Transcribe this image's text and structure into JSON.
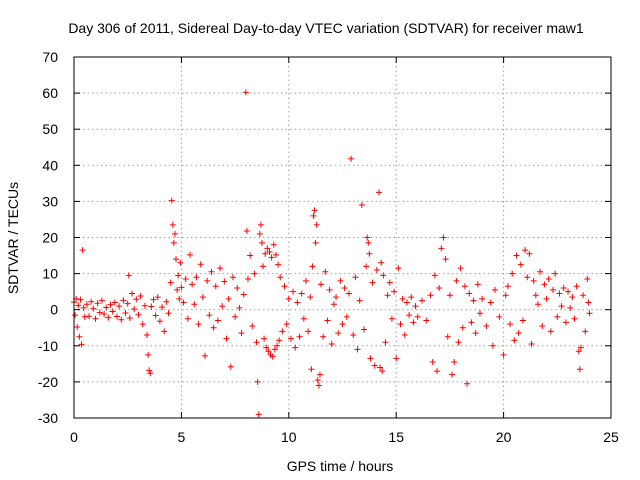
{
  "chart_data": {
    "type": "scatter",
    "title": "Day 306 of 2011, Sidereal Day-to-day VTEC variation (SDTVAR) for receiver maw1",
    "xlabel": "GPS time / hours",
    "ylabel": "SDTVAR / TECUs",
    "xlim": [
      0,
      25
    ],
    "ylim": [
      -30,
      70
    ],
    "xticks": [
      0,
      5,
      10,
      15,
      20,
      25
    ],
    "yticks": [
      -30,
      -20,
      -10,
      0,
      10,
      20,
      30,
      40,
      50,
      60,
      70
    ],
    "grid": true,
    "marker": "+",
    "series": [
      {
        "name": "SDTVAR",
        "color": "#ff0000",
        "points": [
          [
            0.0,
            2.1
          ],
          [
            0.05,
            -1.5
          ],
          [
            0.1,
            3.0
          ],
          [
            0.15,
            -4.8
          ],
          [
            0.2,
            1.2
          ],
          [
            0.25,
            -7.5
          ],
          [
            0.3,
            2.8
          ],
          [
            0.35,
            -9.6
          ],
          [
            0.4,
            16.5
          ],
          [
            0.45,
            0.5
          ],
          [
            0.5,
            -2.0
          ],
          [
            0.6,
            1.5
          ],
          [
            0.7,
            -1.8
          ],
          [
            0.8,
            2.2
          ],
          [
            0.9,
            0.3
          ],
          [
            1.0,
            -2.5
          ],
          [
            1.1,
            1.8
          ],
          [
            1.2,
            -0.8
          ],
          [
            1.3,
            2.5
          ],
          [
            1.4,
            -1.2
          ],
          [
            1.5,
            0.6
          ],
          [
            1.6,
            -2.2
          ],
          [
            1.7,
            1.4
          ],
          [
            1.8,
            -0.5
          ],
          [
            1.9,
            2.0
          ],
          [
            2.0,
            -1.9
          ],
          [
            2.1,
            1.0
          ],
          [
            2.2,
            -2.8
          ],
          [
            2.3,
            2.6
          ],
          [
            2.4,
            -0.9
          ],
          [
            2.5,
            1.7
          ],
          [
            2.55,
            9.5
          ],
          [
            2.6,
            -2.3
          ],
          [
            2.7,
            4.5
          ],
          [
            2.8,
            0.2
          ],
          [
            2.9,
            2.9
          ],
          [
            3.0,
            -1.4
          ],
          [
            3.1,
            3.8
          ],
          [
            3.2,
            -4.0
          ],
          [
            3.3,
            1.1
          ],
          [
            3.4,
            -7.0
          ],
          [
            3.45,
            -12.5
          ],
          [
            3.5,
            -16.8
          ],
          [
            3.55,
            -17.6
          ],
          [
            3.6,
            0.9
          ],
          [
            3.7,
            2.8
          ],
          [
            3.8,
            -1.6
          ],
          [
            3.9,
            3.5
          ],
          [
            4.0,
            -3.2
          ],
          [
            4.1,
            0.7
          ],
          [
            4.2,
            -6.0
          ],
          [
            4.3,
            2.2
          ],
          [
            4.4,
            -1.0
          ],
          [
            4.5,
            7.5
          ],
          [
            4.55,
            30.2
          ],
          [
            4.6,
            23.5
          ],
          [
            4.65,
            18.5
          ],
          [
            4.7,
            21.0
          ],
          [
            4.75,
            14.0
          ],
          [
            4.8,
            5.5
          ],
          [
            4.85,
            9.5
          ],
          [
            4.9,
            3.0
          ],
          [
            4.95,
            13.0
          ],
          [
            5.0,
            6.2
          ],
          [
            5.1,
            2.0
          ],
          [
            5.2,
            8.5
          ],
          [
            5.3,
            -2.5
          ],
          [
            5.4,
            15.2
          ],
          [
            5.5,
            7.0
          ],
          [
            5.6,
            1.5
          ],
          [
            5.7,
            9.0
          ],
          [
            5.8,
            -4.0
          ],
          [
            5.9,
            12.6
          ],
          [
            6.0,
            3.5
          ],
          [
            6.1,
            -12.8
          ],
          [
            6.2,
            8.0
          ],
          [
            6.3,
            -1.5
          ],
          [
            6.4,
            10.5
          ],
          [
            6.5,
            -5.0
          ],
          [
            6.6,
            6.5
          ],
          [
            6.7,
            -3.0
          ],
          [
            6.8,
            11.5
          ],
          [
            6.9,
            1.0
          ],
          [
            7.0,
            7.8
          ],
          [
            7.1,
            -8.0
          ],
          [
            7.2,
            3.0
          ],
          [
            7.3,
            -15.8
          ],
          [
            7.4,
            9.0
          ],
          [
            7.5,
            -2.0
          ],
          [
            7.6,
            6.0
          ],
          [
            7.7,
            0.5
          ],
          [
            7.8,
            -6.5
          ],
          [
            7.9,
            4.2
          ],
          [
            8.0,
            60.2
          ],
          [
            8.05,
            21.8
          ],
          [
            8.1,
            8.5
          ],
          [
            8.2,
            15.0
          ],
          [
            8.3,
            -4.5
          ],
          [
            8.4,
            10.0
          ],
          [
            8.5,
            -9.0
          ],
          [
            8.55,
            -20.0
          ],
          [
            8.6,
            -29.0
          ],
          [
            8.65,
            21.0
          ],
          [
            8.7,
            23.5
          ],
          [
            8.75,
            18.5
          ],
          [
            8.8,
            12.0
          ],
          [
            8.85,
            -8.0
          ],
          [
            8.9,
            15.5
          ],
          [
            8.95,
            -10.5
          ],
          [
            9.0,
            17.0
          ],
          [
            9.05,
            -11.5
          ],
          [
            9.1,
            16.0
          ],
          [
            9.15,
            -12.5
          ],
          [
            9.2,
            14.5
          ],
          [
            9.25,
            -13.0
          ],
          [
            9.3,
            18.0
          ],
          [
            9.35,
            -11.0
          ],
          [
            9.4,
            15.2
          ],
          [
            9.45,
            -10.0
          ],
          [
            9.5,
            12.5
          ],
          [
            9.55,
            -8.5
          ],
          [
            9.6,
            9.0
          ],
          [
            9.7,
            -6.0
          ],
          [
            9.8,
            6.5
          ],
          [
            9.9,
            -4.0
          ],
          [
            10.0,
            3.0
          ],
          [
            10.1,
            -8.0
          ],
          [
            10.2,
            5.0
          ],
          [
            10.3,
            -10.5
          ],
          [
            10.4,
            2.0
          ],
          [
            10.5,
            -7.5
          ],
          [
            10.6,
            4.5
          ],
          [
            10.7,
            -2.5
          ],
          [
            10.8,
            8.0
          ],
          [
            10.9,
            -6.0
          ],
          [
            11.0,
            3.5
          ],
          [
            11.05,
            -16.5
          ],
          [
            11.1,
            12.0
          ],
          [
            11.15,
            26.0
          ],
          [
            11.2,
            27.5
          ],
          [
            11.25,
            18.5
          ],
          [
            11.3,
            23.5
          ],
          [
            11.35,
            -19.5
          ],
          [
            11.4,
            -21.0
          ],
          [
            11.45,
            -18.0
          ],
          [
            11.5,
            7.0
          ],
          [
            11.6,
            -7.5
          ],
          [
            11.7,
            10.5
          ],
          [
            11.8,
            -3.0
          ],
          [
            11.9,
            5.5
          ],
          [
            12.0,
            -9.5
          ],
          [
            12.1,
            1.5
          ],
          [
            12.2,
            3.5
          ],
          [
            12.3,
            -6.5
          ],
          [
            12.4,
            8.0
          ],
          [
            12.5,
            -4.0
          ],
          [
            12.6,
            6.0
          ],
          [
            12.7,
            -2.0
          ],
          [
            12.8,
            4.5
          ],
          [
            12.9,
            41.8
          ],
          [
            13.0,
            -7.0
          ],
          [
            13.1,
            9.0
          ],
          [
            13.2,
            -11.0
          ],
          [
            13.3,
            2.5
          ],
          [
            13.4,
            29.0
          ],
          [
            13.5,
            -5.5
          ],
          [
            13.6,
            12.0
          ],
          [
            13.65,
            20.0
          ],
          [
            13.7,
            18.5
          ],
          [
            13.75,
            15.5
          ],
          [
            13.8,
            -13.5
          ],
          [
            13.9,
            7.5
          ],
          [
            14.0,
            -15.5
          ],
          [
            14.1,
            11.0
          ],
          [
            14.2,
            32.5
          ],
          [
            14.25,
            -16.0
          ],
          [
            14.3,
            13.0
          ],
          [
            14.35,
            -17.0
          ],
          [
            14.4,
            9.5
          ],
          [
            14.5,
            -9.0
          ],
          [
            14.6,
            4.0
          ],
          [
            14.7,
            7.5
          ],
          [
            14.8,
            -2.5
          ],
          [
            14.9,
            5.0
          ],
          [
            15.0,
            -13.5
          ],
          [
            15.1,
            11.5
          ],
          [
            15.2,
            -4.0
          ],
          [
            15.3,
            3.0
          ],
          [
            15.4,
            -7.0
          ],
          [
            15.5,
            2.0
          ],
          [
            15.6,
            -1.5
          ],
          [
            15.7,
            3.5
          ],
          [
            15.8,
            -3.5
          ],
          [
            15.9,
            1.0
          ],
          [
            16.0,
            -2.0
          ],
          [
            16.2,
            2.5
          ],
          [
            16.4,
            -3.0
          ],
          [
            16.6,
            4.0
          ],
          [
            16.7,
            -14.5
          ],
          [
            16.8,
            9.5
          ],
          [
            16.9,
            -17.0
          ],
          [
            17.0,
            6.0
          ],
          [
            17.1,
            17.0
          ],
          [
            17.2,
            20.0
          ],
          [
            17.3,
            14.0
          ],
          [
            17.4,
            -7.5
          ],
          [
            17.5,
            4.0
          ],
          [
            17.6,
            -18.0
          ],
          [
            17.7,
            -14.5
          ],
          [
            17.8,
            8.0
          ],
          [
            17.9,
            -9.0
          ],
          [
            18.0,
            11.5
          ],
          [
            18.1,
            -5.0
          ],
          [
            18.2,
            6.5
          ],
          [
            18.3,
            -20.5
          ],
          [
            18.4,
            4.5
          ],
          [
            18.5,
            -3.5
          ],
          [
            18.6,
            2.5
          ],
          [
            18.7,
            -6.5
          ],
          [
            18.8,
            7.0
          ],
          [
            18.9,
            -1.0
          ],
          [
            19.0,
            3.0
          ],
          [
            19.2,
            -4.5
          ],
          [
            19.4,
            2.0
          ],
          [
            19.5,
            -10.0
          ],
          [
            19.6,
            5.5
          ],
          [
            19.8,
            -2.0
          ],
          [
            20.0,
            -12.5
          ],
          [
            20.1,
            4.0
          ],
          [
            20.2,
            6.5
          ],
          [
            20.3,
            -4.0
          ],
          [
            20.4,
            10.0
          ],
          [
            20.5,
            -8.5
          ],
          [
            20.6,
            15.0
          ],
          [
            20.7,
            -6.5
          ],
          [
            20.8,
            12.5
          ],
          [
            20.9,
            -3.0
          ],
          [
            21.0,
            16.5
          ],
          [
            21.1,
            9.0
          ],
          [
            21.2,
            15.5
          ],
          [
            21.3,
            -9.5
          ],
          [
            21.4,
            8.0
          ],
          [
            21.5,
            4.0
          ],
          [
            21.6,
            1.5
          ],
          [
            21.7,
            10.5
          ],
          [
            21.8,
            -4.5
          ],
          [
            21.9,
            7.0
          ],
          [
            22.0,
            3.0
          ],
          [
            22.1,
            8.5
          ],
          [
            22.2,
            -6.0
          ],
          [
            22.3,
            5.5
          ],
          [
            22.4,
            10.0
          ],
          [
            22.5,
            -2.0
          ],
          [
            22.6,
            4.5
          ],
          [
            22.7,
            1.0
          ],
          [
            22.8,
            6.0
          ],
          [
            22.9,
            -3.5
          ],
          [
            23.0,
            5.0
          ],
          [
            23.1,
            0.5
          ],
          [
            23.2,
            3.5
          ],
          [
            23.3,
            -2.5
          ],
          [
            23.4,
            6.5
          ],
          [
            23.5,
            -11.5
          ],
          [
            23.55,
            -16.5
          ],
          [
            23.6,
            -10.5
          ],
          [
            23.7,
            4.0
          ],
          [
            23.8,
            -6.0
          ],
          [
            23.9,
            8.5
          ],
          [
            23.95,
            2.0
          ],
          [
            24.0,
            -1.0
          ]
        ]
      }
    ]
  }
}
